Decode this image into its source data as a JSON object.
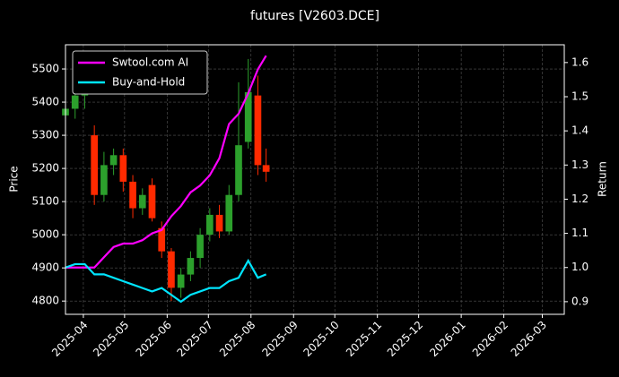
{
  "chart_data": {
    "type": "candlestick",
    "title": "futures [V2603.DCE]",
    "ylabel": "Price",
    "y2label": "Return",
    "x": [
      "2025-03-19",
      "2025-03-26",
      "2025-04-02",
      "2025-04-09",
      "2025-04-16",
      "2025-04-23",
      "2025-04-30",
      "2025-05-07",
      "2025-05-14",
      "2025-05-21",
      "2025-05-28",
      "2025-06-04",
      "2025-06-11",
      "2025-06-18",
      "2025-06-25",
      "2025-07-02",
      "2025-07-09",
      "2025-07-16",
      "2025-07-23",
      "2025-07-30",
      "2025-08-06",
      "2025-08-12"
    ],
    "open": [
      5360,
      5380,
      5420,
      5300,
      5120,
      5210,
      5240,
      5160,
      5080,
      5150,
      5020,
      4950,
      4840,
      4880,
      4930,
      5000,
      5060,
      5010,
      5120,
      5280,
      5420,
      5210
    ],
    "high": [
      5420,
      5450,
      5480,
      5330,
      5250,
      5260,
      5260,
      5180,
      5140,
      5170,
      5040,
      4960,
      4900,
      4950,
      5020,
      5080,
      5090,
      5150,
      5460,
      5530,
      5480,
      5260
    ],
    "low": [
      5340,
      5350,
      5380,
      5090,
      5100,
      5180,
      5130,
      5050,
      5060,
      5040,
      4930,
      4800,
      4810,
      4860,
      4900,
      4980,
      4990,
      5000,
      5100,
      5260,
      5180,
      5160
    ],
    "close": [
      5380,
      5420,
      5430,
      5120,
      5210,
      5240,
      5160,
      5080,
      5120,
      5050,
      4950,
      4840,
      4880,
      4930,
      5000,
      5060,
      5010,
      5120,
      5270,
      5430,
      5210,
      5190
    ],
    "up_color": "#2ca02c",
    "down_color": "#ff2a00",
    "series": [
      {
        "name": "Swtool.com AI",
        "color": "#ff00ff",
        "axis": "y2",
        "values": [
          1.0,
          1.0,
          1.0,
          1.0,
          1.03,
          1.06,
          1.07,
          1.07,
          1.08,
          1.1,
          1.11,
          1.15,
          1.18,
          1.22,
          1.24,
          1.27,
          1.32,
          1.42,
          1.45,
          1.51,
          1.58,
          1.62
        ]
      },
      {
        "name": "Buy-and-Hold",
        "color": "#00e5ff",
        "axis": "y2",
        "values": [
          1.0,
          1.01,
          1.01,
          0.98,
          0.98,
          0.97,
          0.96,
          0.95,
          0.94,
          0.93,
          0.94,
          0.92,
          0.9,
          0.92,
          0.93,
          0.94,
          0.94,
          0.96,
          0.97,
          1.02,
          0.97,
          0.98
        ]
      }
    ],
    "xlim": [
      "2025-03-19",
      "2026-03-17"
    ],
    "xticks": [
      {
        "value": "2025-04-01",
        "label": "2025-04"
      },
      {
        "value": "2025-05-01",
        "label": "2025-05"
      },
      {
        "value": "2025-06-01",
        "label": "2025-06"
      },
      {
        "value": "2025-07-01",
        "label": "2025-07"
      },
      {
        "value": "2025-08-01",
        "label": "2025-08"
      },
      {
        "value": "2025-09-01",
        "label": "2025-09"
      },
      {
        "value": "2025-10-01",
        "label": "2025-10"
      },
      {
        "value": "2025-11-01",
        "label": "2025-11"
      },
      {
        "value": "2025-12-01",
        "label": "2025-12"
      },
      {
        "value": "2026-01-01",
        "label": "2026-01"
      },
      {
        "value": "2026-02-01",
        "label": "2026-02"
      },
      {
        "value": "2026-03-01",
        "label": "2026-03"
      }
    ],
    "ylim": [
      4760,
      5573
    ],
    "yticks": [
      4800,
      4900,
      5000,
      5100,
      5200,
      5300,
      5400,
      5500
    ],
    "y2lim": [
      0.863,
      1.652
    ],
    "y2ticks": [
      0.9,
      {
        "value": 1,
        "label": "1.0"
      },
      1.1,
      1.2,
      1.3,
      1.4,
      1.5,
      1.6
    ],
    "grid": true,
    "legend": "upper-left"
  }
}
